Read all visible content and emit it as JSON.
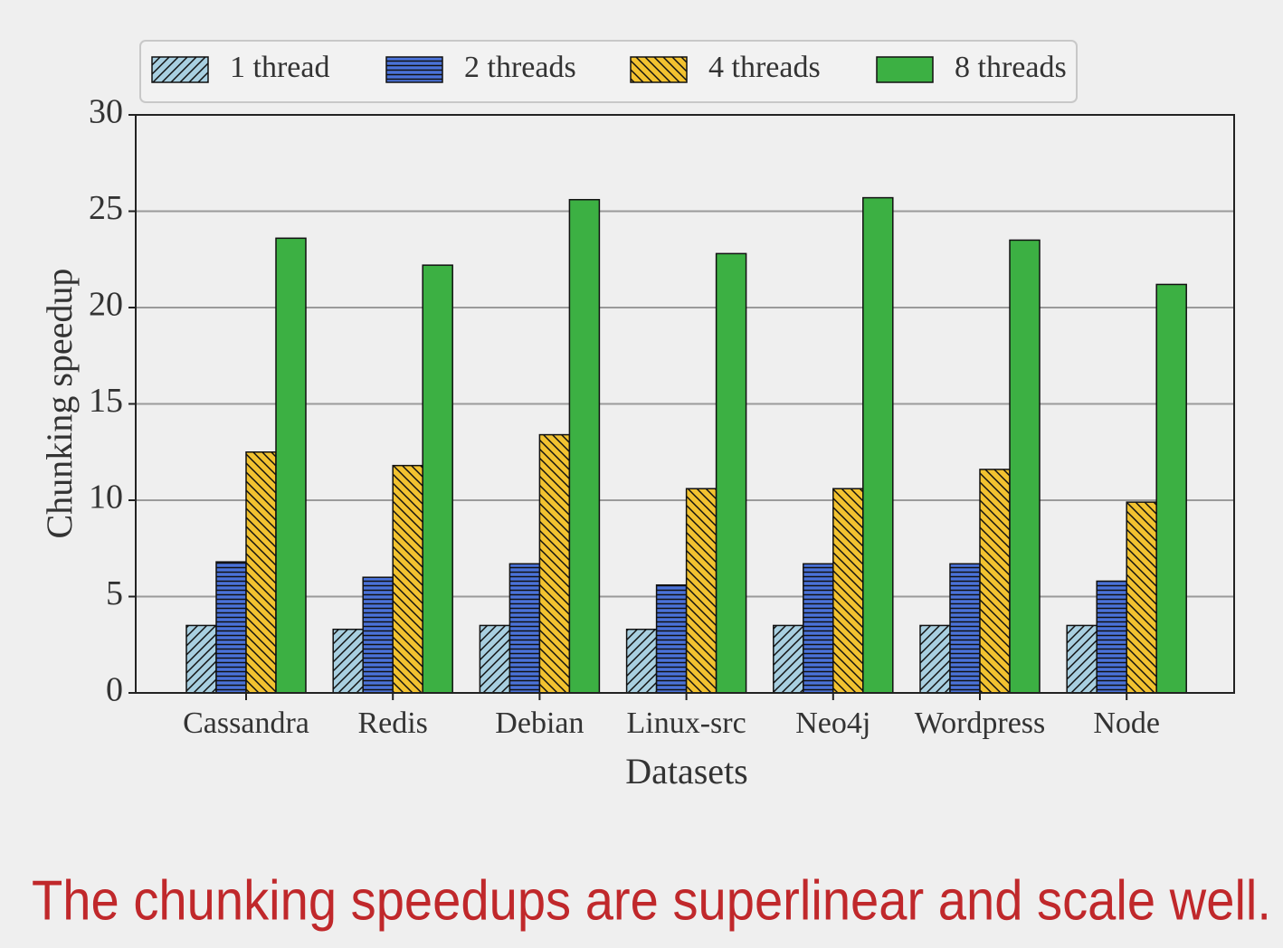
{
  "chart_data": {
    "type": "bar",
    "x_label": "Datasets",
    "y_label": "Chunking speedup",
    "categories": [
      "Cassandra",
      "Redis",
      "Debian",
      "Linux-src",
      "Neo4j",
      "Wordpress",
      "Node"
    ],
    "series": [
      {
        "name": "1 thread",
        "color": "#a8cfe0",
        "hatch": "/",
        "values": [
          3.5,
          3.3,
          3.5,
          3.3,
          3.5,
          3.5,
          3.5
        ]
      },
      {
        "name": "2 threads",
        "color": "#4a72d9",
        "hatch": "-",
        "values": [
          6.8,
          6.0,
          6.7,
          5.6,
          6.7,
          6.7,
          5.8
        ]
      },
      {
        "name": "4 threads",
        "color": "#f2c230",
        "hatch": "\\",
        "values": [
          12.5,
          11.8,
          13.4,
          10.6,
          10.6,
          11.6,
          9.9
        ]
      },
      {
        "name": "8 threads",
        "color": "#3cb043",
        "values": [
          23.6,
          22.2,
          25.6,
          22.8,
          25.7,
          23.5,
          21.2
        ]
      }
    ],
    "ylim": [
      0,
      30
    ],
    "yticks": [
      0,
      5,
      10,
      15,
      20,
      25,
      30
    ],
    "grid": true,
    "legend": "top",
    "caption": "The chunking speedups are superlinear and scale well."
  }
}
